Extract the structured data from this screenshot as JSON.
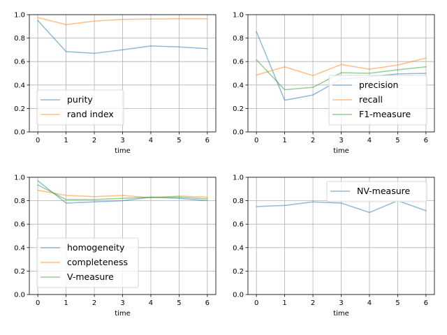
{
  "colors": {
    "series": [
      "#1f77b4",
      "#ff7f0e",
      "#2ca02c"
    ]
  },
  "chart_data": [
    {
      "type": "line",
      "xlabel": "time",
      "ylabel": "",
      "xlim": [
        -0.3,
        6.3
      ],
      "ylim": [
        0,
        1.0
      ],
      "xticks": [
        "0",
        "1",
        "2",
        "3",
        "4",
        "5",
        "6"
      ],
      "yticks": [
        "0.0",
        "0.2",
        "0.4",
        "0.6",
        "0.8",
        "1.0"
      ],
      "grid": true,
      "legend": "lower-left",
      "x": [
        0,
        1,
        2,
        3,
        4,
        5,
        6
      ],
      "series": [
        {
          "name": "purity",
          "values": [
            0.95,
            0.685,
            0.67,
            0.7,
            0.733,
            0.725,
            0.71
          ]
        },
        {
          "name": "rand index",
          "values": [
            0.975,
            0.915,
            0.945,
            0.96,
            0.963,
            0.965,
            0.965
          ]
        }
      ]
    },
    {
      "type": "line",
      "xlabel": "time",
      "ylabel": "",
      "xlim": [
        -0.3,
        6.3
      ],
      "ylim": [
        0,
        1.0
      ],
      "xticks": [
        "0",
        "1",
        "2",
        "3",
        "4",
        "5",
        "6"
      ],
      "yticks": [
        "0.0",
        "0.2",
        "0.4",
        "0.6",
        "0.8",
        "1.0"
      ],
      "grid": true,
      "legend": "lower-right",
      "x": [
        0,
        1,
        2,
        3,
        4,
        5,
        6
      ],
      "series": [
        {
          "name": "precision",
          "values": [
            0.855,
            0.27,
            0.315,
            0.45,
            0.47,
            0.495,
            0.5
          ]
        },
        {
          "name": "recall",
          "values": [
            0.485,
            0.555,
            0.48,
            0.575,
            0.535,
            0.57,
            0.63
          ]
        },
        {
          "name": "F1-measure",
          "values": [
            0.615,
            0.36,
            0.38,
            0.505,
            0.5,
            0.53,
            0.555
          ]
        }
      ]
    },
    {
      "type": "line",
      "xlabel": "time",
      "ylabel": "",
      "xlim": [
        -0.3,
        6.3
      ],
      "ylim": [
        0,
        1.0
      ],
      "xticks": [
        "0",
        "1",
        "2",
        "3",
        "4",
        "5",
        "6"
      ],
      "yticks": [
        "0.0",
        "0.2",
        "0.4",
        "0.6",
        "0.8",
        "1.0"
      ],
      "grid": true,
      "legend": "lower-left",
      "x": [
        0,
        1,
        2,
        3,
        4,
        5,
        6
      ],
      "series": [
        {
          "name": "homogeneity",
          "values": [
            0.97,
            0.78,
            0.79,
            0.8,
            0.83,
            0.82,
            0.8
          ]
        },
        {
          "name": "completeness",
          "values": [
            0.89,
            0.845,
            0.835,
            0.845,
            0.825,
            0.84,
            0.83
          ]
        },
        {
          "name": "V-measure",
          "values": [
            0.935,
            0.81,
            0.81,
            0.82,
            0.83,
            0.83,
            0.815
          ]
        }
      ]
    },
    {
      "type": "line",
      "xlabel": "time",
      "ylabel": "",
      "xlim": [
        -0.3,
        6.3
      ],
      "ylim": [
        0,
        1.0
      ],
      "xticks": [
        "0",
        "1",
        "2",
        "3",
        "4",
        "5",
        "6"
      ],
      "yticks": [
        "0.0",
        "0.2",
        "0.4",
        "0.6",
        "0.8",
        "1.0"
      ],
      "grid": true,
      "legend": "top-right",
      "x": [
        0,
        1,
        2,
        3,
        4,
        5,
        6
      ],
      "series": [
        {
          "name": "NV-measure",
          "values": [
            0.75,
            0.76,
            0.79,
            0.78,
            0.7,
            0.8,
            0.715
          ]
        }
      ]
    }
  ]
}
